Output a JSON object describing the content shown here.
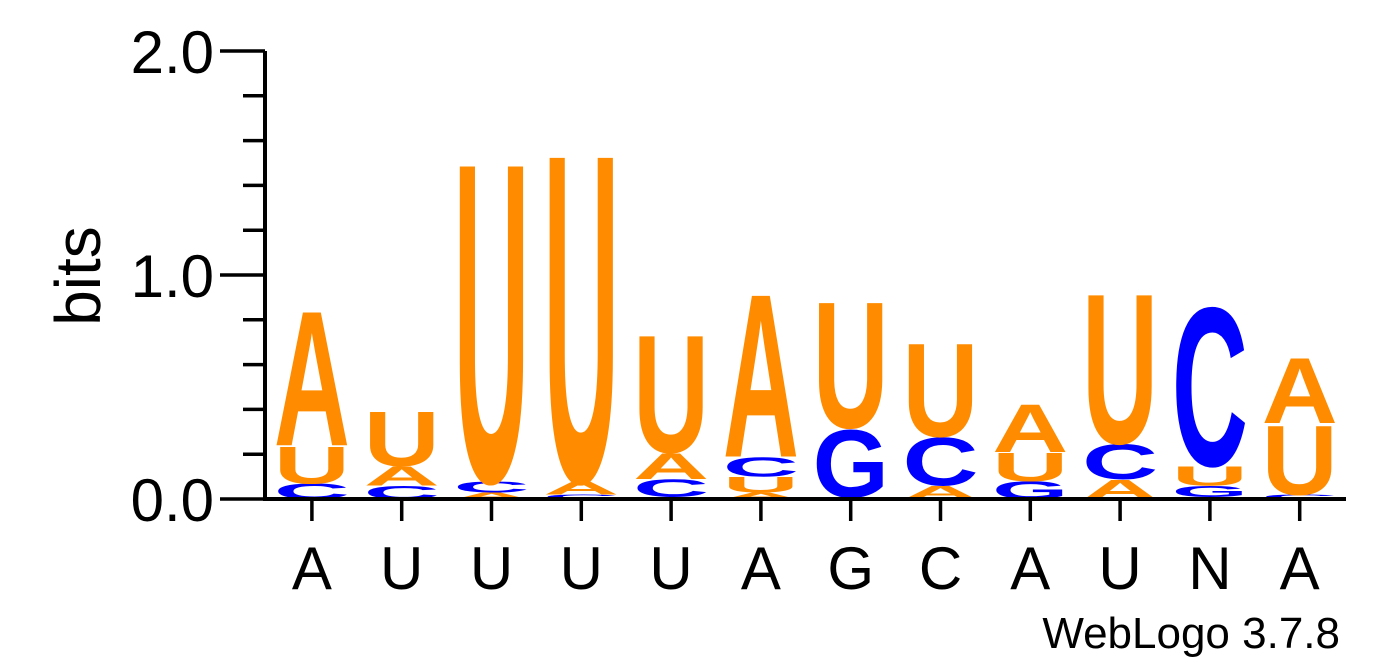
{
  "colors": {
    "A": "#FF8C00",
    "U": "#FF8C00",
    "G": "#0000FF",
    "C": "#0000FF",
    "axis": "#000000"
  },
  "credit": "WebLogo 3.7.8",
  "chart_data": {
    "type": "sequence-logo",
    "ylabel": "bits",
    "ylim": [
      0,
      2.0
    ],
    "y_ticks": [
      "0.0",
      "1.0",
      "2.0"
    ],
    "x_labels": [
      "A",
      "U",
      "U",
      "U",
      "U",
      "A",
      "G",
      "C",
      "A",
      "U",
      "N",
      "A"
    ],
    "positions": [
      {
        "stack": [
          {
            "letter": "C",
            "bits": 0.07
          },
          {
            "letter": "U",
            "bits": 0.17
          },
          {
            "letter": "A",
            "bits": 0.62
          }
        ]
      },
      {
        "stack": [
          {
            "letter": "C",
            "bits": 0.06
          },
          {
            "letter": "A",
            "bits": 0.09
          },
          {
            "letter": "U",
            "bits": 0.25
          }
        ]
      },
      {
        "stack": [
          {
            "letter": "A",
            "bits": 0.03
          },
          {
            "letter": "C",
            "bits": 0.05
          },
          {
            "letter": "U",
            "bits": 1.47
          }
        ]
      },
      {
        "stack": [
          {
            "letter": "C",
            "bits": 0.02
          },
          {
            "letter": "A",
            "bits": 0.06
          },
          {
            "letter": "U",
            "bits": 1.51
          }
        ]
      },
      {
        "stack": [
          {
            "letter": "A",
            "bits": 0.01
          },
          {
            "letter": "C",
            "bits": 0.08
          },
          {
            "letter": "A",
            "bits": 0.12
          },
          {
            "letter": "U",
            "bits": 0.54
          }
        ]
      },
      {
        "stack": [
          {
            "letter": "A",
            "bits": 0.03
          },
          {
            "letter": "U",
            "bits": 0.07
          },
          {
            "letter": "C",
            "bits": 0.09
          },
          {
            "letter": "A",
            "bits": 0.75
          }
        ]
      },
      {
        "stack": [
          {
            "letter": "A",
            "bits": 0.01
          },
          {
            "letter": "G",
            "bits": 0.31
          },
          {
            "letter": "U",
            "bits": 0.58
          }
        ]
      },
      {
        "stack": [
          {
            "letter": "A",
            "bits": 0.06
          },
          {
            "letter": "C",
            "bits": 0.22
          },
          {
            "letter": "U",
            "bits": 0.43
          }
        ]
      },
      {
        "stack": [
          {
            "letter": "G",
            "bits": 0.08
          },
          {
            "letter": "U",
            "bits": 0.13
          },
          {
            "letter": "A",
            "bits": 0.22
          }
        ]
      },
      {
        "stack": [
          {
            "letter": "A",
            "bits": 0.09
          },
          {
            "letter": "C",
            "bits": 0.16
          },
          {
            "letter": "U",
            "bits": 0.69
          }
        ]
      },
      {
        "stack": [
          {
            "letter": "A",
            "bits": 0.01
          },
          {
            "letter": "G",
            "bits": 0.05
          },
          {
            "letter": "U",
            "bits": 0.09
          },
          {
            "letter": "C",
            "bits": 0.73
          }
        ]
      },
      {
        "stack": [
          {
            "letter": "C",
            "bits": 0.02
          },
          {
            "letter": "U",
            "bits": 0.32
          },
          {
            "letter": "A",
            "bits": 0.3
          }
        ]
      }
    ]
  }
}
